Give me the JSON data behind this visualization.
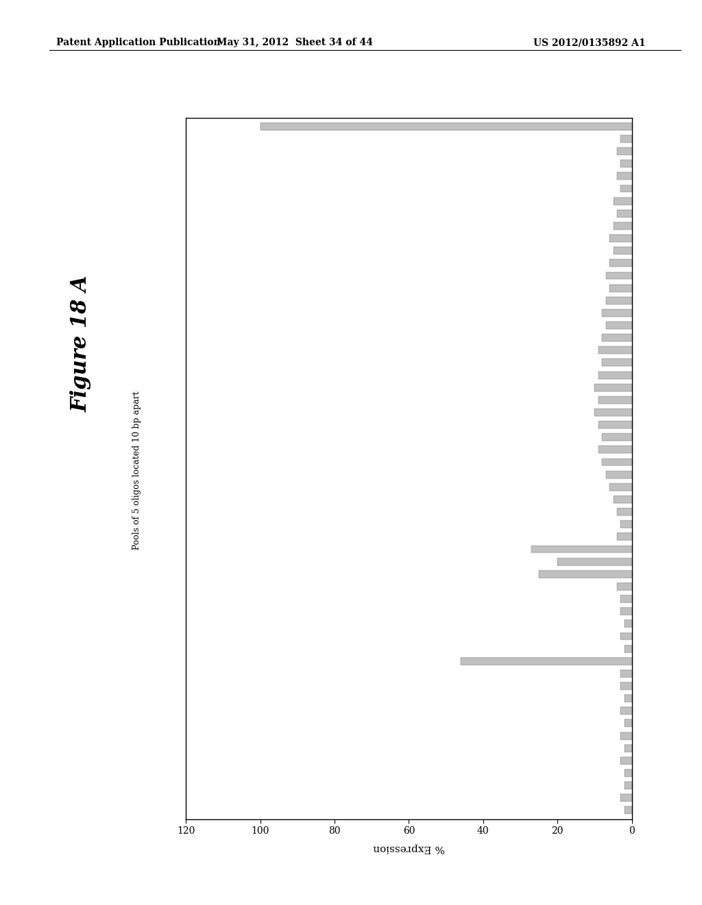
{
  "title": "Figure 18 A",
  "ylabel": "Pools of 5 oligos located 10 bp apart",
  "xlabel": "% Expression",
  "header_left": "Patent Application Publication",
  "header_mid": "May 31, 2012  Sheet 34 of 44",
  "header_right": "US 2012/0135892 A1",
  "xticks": [
    120,
    100,
    80,
    60,
    40,
    20,
    0
  ],
  "bar_values": [
    100,
    3,
    4,
    3,
    4,
    3,
    5,
    4,
    5,
    6,
    5,
    6,
    7,
    6,
    7,
    8,
    7,
    8,
    9,
    8,
    9,
    10,
    9,
    10,
    9,
    8,
    9,
    8,
    7,
    6,
    5,
    4,
    3,
    4,
    27,
    20,
    25,
    4,
    3,
    3,
    2,
    3,
    2,
    46,
    3,
    3,
    2,
    3,
    2,
    3,
    2,
    3,
    2,
    2,
    3,
    2
  ],
  "bar_color": "#c0c0c0",
  "bar_edge_color": "#666666",
  "background_color": "#ffffff",
  "n_pools": 56
}
